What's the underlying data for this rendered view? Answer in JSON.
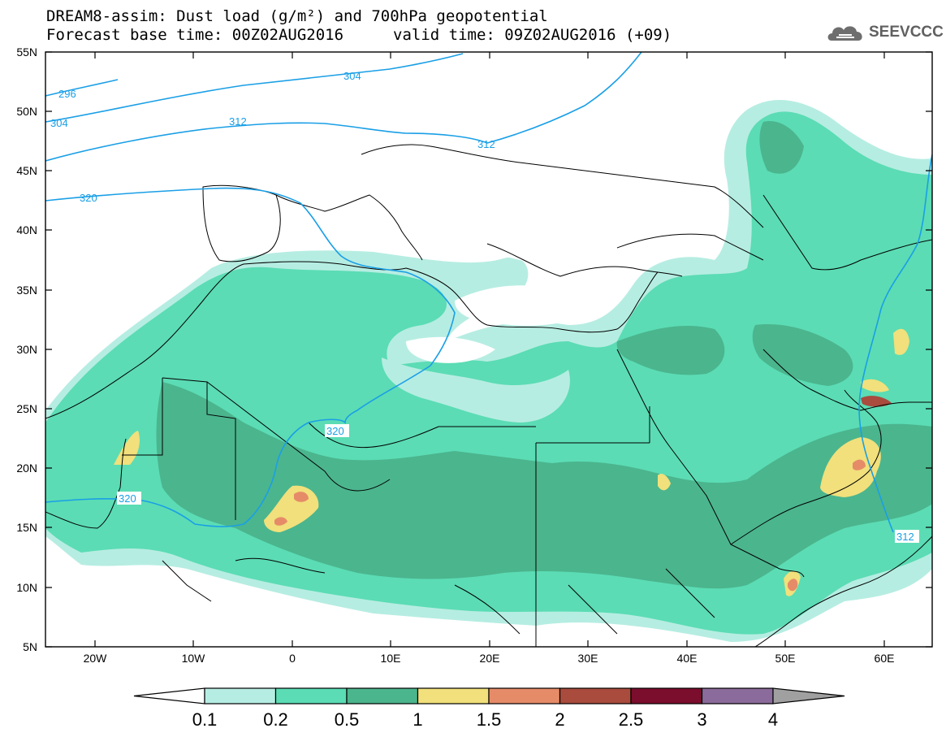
{
  "header": {
    "title": "DREAM8-assim: Dust load (g/m²) and 700hPa geopotential",
    "base_time": "Forecast base time: 00Z02AUG2016",
    "valid_time": "valid time: 09Z02AUG2016 (+09)"
  },
  "logo": {
    "text": "SEEVCCC",
    "icon": "cloud-logo-icon"
  },
  "map": {
    "lat_labels": [
      "55N",
      "50N",
      "45N",
      "40N",
      "35N",
      "30N",
      "25N",
      "20N",
      "15N",
      "10N",
      "5N"
    ],
    "lon_labels": [
      "20W",
      "10W",
      "0",
      "10E",
      "20E",
      "30E",
      "40E",
      "50E",
      "60E"
    ],
    "contour_labels": [
      "296",
      "304",
      "304",
      "312",
      "312",
      "320",
      "320",
      "320",
      "312"
    ]
  },
  "legend": {
    "colors": [
      "#b6ede2",
      "#5bdcb4",
      "#4bb58e",
      "#f1e07b",
      "#e68b68",
      "#a94b3d",
      "#7b0d2d",
      "#8b6b9b",
      "#a0a0a0"
    ],
    "thresholds": [
      "0.1",
      "0.2",
      "0.5",
      "1",
      "1.5",
      "2",
      "2.5",
      "3",
      "4"
    ]
  }
}
